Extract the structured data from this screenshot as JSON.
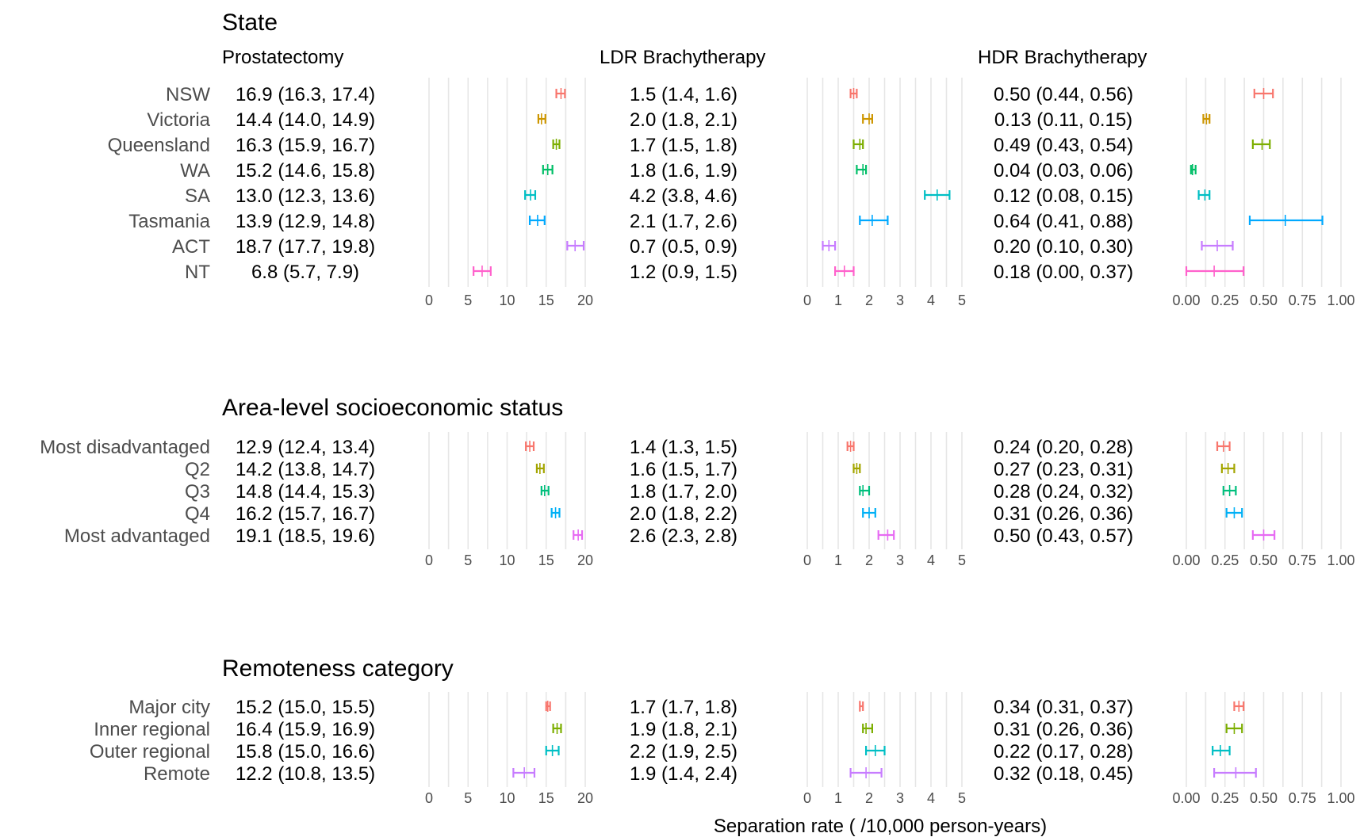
{
  "chart_data": {
    "type": "forest",
    "xlabel": "Separation rate ( /10,000 person-years)",
    "columns": [
      {
        "title": "Prostatectomy",
        "xlim": [
          0,
          20
        ],
        "ticks": [
          "0",
          "5",
          "10",
          "15",
          "20"
        ],
        "tick_values": [
          0,
          5,
          10,
          15,
          20
        ]
      },
      {
        "title": "LDR Brachytherapy",
        "xlim": [
          0,
          5
        ],
        "ticks": [
          "0",
          "1",
          "2",
          "3",
          "4",
          "5"
        ],
        "tick_values": [
          0,
          1,
          2,
          3,
          4,
          5
        ]
      },
      {
        "title": "HDR Brachytherapy",
        "xlim": [
          0,
          1
        ],
        "ticks": [
          "0.00",
          "0.25",
          "0.50",
          "0.75",
          "1.00"
        ],
        "tick_values": [
          0,
          0.25,
          0.5,
          0.75,
          1
        ]
      }
    ],
    "sections": [
      {
        "title": "State",
        "rows": [
          {
            "label": "NSW",
            "color": "#F8766D",
            "values": [
              {
                "est": 16.9,
                "lo": 16.3,
                "hi": 17.4,
                "text": "16.9 (16.3, 17.4)"
              },
              {
                "est": 1.5,
                "lo": 1.4,
                "hi": 1.6,
                "text": "1.5 (1.4, 1.6)"
              },
              {
                "est": 0.5,
                "lo": 0.44,
                "hi": 0.56,
                "text": "0.50 (0.44, 0.56)"
              }
            ]
          },
          {
            "label": "Victoria",
            "color": "#CD9600",
            "values": [
              {
                "est": 14.4,
                "lo": 14.0,
                "hi": 14.9,
                "text": "14.4 (14.0, 14.9)"
              },
              {
                "est": 2.0,
                "lo": 1.8,
                "hi": 2.1,
                "text": "2.0 (1.8, 2.1)"
              },
              {
                "est": 0.13,
                "lo": 0.11,
                "hi": 0.15,
                "text": "0.13 (0.11, 0.15)"
              }
            ]
          },
          {
            "label": "Queensland",
            "color": "#7CAE00",
            "values": [
              {
                "est": 16.3,
                "lo": 15.9,
                "hi": 16.7,
                "text": "16.3 (15.9, 16.7)"
              },
              {
                "est": 1.7,
                "lo": 1.5,
                "hi": 1.8,
                "text": "1.7 (1.5, 1.8)"
              },
              {
                "est": 0.49,
                "lo": 0.43,
                "hi": 0.54,
                "text": "0.49 (0.43, 0.54)"
              }
            ]
          },
          {
            "label": "WA",
            "color": "#00BE67",
            "values": [
              {
                "est": 15.2,
                "lo": 14.6,
                "hi": 15.8,
                "text": "15.2 (14.6, 15.8)"
              },
              {
                "est": 1.8,
                "lo": 1.6,
                "hi": 1.9,
                "text": "1.8 (1.6, 1.9)"
              },
              {
                "est": 0.04,
                "lo": 0.03,
                "hi": 0.06,
                "text": "0.04 (0.03, 0.06)"
              }
            ]
          },
          {
            "label": "SA",
            "color": "#00BFC4",
            "values": [
              {
                "est": 13.0,
                "lo": 12.3,
                "hi": 13.6,
                "text": "13.0 (12.3, 13.6)"
              },
              {
                "est": 4.2,
                "lo": 3.8,
                "hi": 4.6,
                "text": "4.2 (3.8, 4.6)"
              },
              {
                "est": 0.12,
                "lo": 0.08,
                "hi": 0.15,
                "text": "0.12 (0.08, 0.15)"
              }
            ]
          },
          {
            "label": "Tasmania",
            "color": "#00A9FF",
            "values": [
              {
                "est": 13.9,
                "lo": 12.9,
                "hi": 14.8,
                "text": "13.9 (12.9, 14.8)"
              },
              {
                "est": 2.1,
                "lo": 1.7,
                "hi": 2.6,
                "text": "2.1 (1.7, 2.6)"
              },
              {
                "est": 0.64,
                "lo": 0.41,
                "hi": 0.88,
                "text": "0.64 (0.41, 0.88)"
              }
            ]
          },
          {
            "label": "ACT",
            "color": "#C77CFF",
            "values": [
              {
                "est": 18.7,
                "lo": 17.7,
                "hi": 19.8,
                "text": "18.7 (17.7, 19.8)"
              },
              {
                "est": 0.7,
                "lo": 0.5,
                "hi": 0.9,
                "text": "0.7 (0.5, 0.9)"
              },
              {
                "est": 0.2,
                "lo": 0.1,
                "hi": 0.3,
                "text": "0.20 (0.10, 0.30)"
              }
            ]
          },
          {
            "label": "NT",
            "color": "#FF61CC",
            "values": [
              {
                "est": 6.8,
                "lo": 5.7,
                "hi": 7.9,
                "text": "6.8 (5.7, 7.9)"
              },
              {
                "est": 1.2,
                "lo": 0.9,
                "hi": 1.5,
                "text": "1.2 (0.9, 1.5)"
              },
              {
                "est": 0.18,
                "lo": 0.0,
                "hi": 0.37,
                "text": "0.18 (0.00, 0.37)"
              }
            ]
          }
        ]
      },
      {
        "title": "Area-level socioeconomic status",
        "rows": [
          {
            "label": "Most disadvantaged",
            "color": "#F8766D",
            "values": [
              {
                "est": 12.9,
                "lo": 12.4,
                "hi": 13.4,
                "text": "12.9 (12.4, 13.4)"
              },
              {
                "est": 1.4,
                "lo": 1.3,
                "hi": 1.5,
                "text": "1.4 (1.3, 1.5)"
              },
              {
                "est": 0.24,
                "lo": 0.2,
                "hi": 0.28,
                "text": "0.24 (0.20, 0.28)"
              }
            ]
          },
          {
            "label": "Q2",
            "color": "#A3A500",
            "values": [
              {
                "est": 14.2,
                "lo": 13.8,
                "hi": 14.7,
                "text": "14.2 (13.8, 14.7)"
              },
              {
                "est": 1.6,
                "lo": 1.5,
                "hi": 1.7,
                "text": "1.6 (1.5, 1.7)"
              },
              {
                "est": 0.27,
                "lo": 0.23,
                "hi": 0.31,
                "text": "0.27 (0.23, 0.31)"
              }
            ]
          },
          {
            "label": "Q3",
            "color": "#00BF7D",
            "values": [
              {
                "est": 14.8,
                "lo": 14.4,
                "hi": 15.3,
                "text": "14.8 (14.4, 15.3)"
              },
              {
                "est": 1.8,
                "lo": 1.7,
                "hi": 2.0,
                "text": "1.8 (1.7, 2.0)"
              },
              {
                "est": 0.28,
                "lo": 0.24,
                "hi": 0.32,
                "text": "0.28 (0.24, 0.32)"
              }
            ]
          },
          {
            "label": "Q4",
            "color": "#00B0F6",
            "values": [
              {
                "est": 16.2,
                "lo": 15.7,
                "hi": 16.7,
                "text": "16.2 (15.7, 16.7)"
              },
              {
                "est": 2.0,
                "lo": 1.8,
                "hi": 2.2,
                "text": "2.0 (1.8, 2.2)"
              },
              {
                "est": 0.31,
                "lo": 0.26,
                "hi": 0.36,
                "text": "0.31 (0.26, 0.36)"
              }
            ]
          },
          {
            "label": "Most advantaged",
            "color": "#E76BF3",
            "values": [
              {
                "est": 19.1,
                "lo": 18.5,
                "hi": 19.6,
                "text": "19.1 (18.5, 19.6)"
              },
              {
                "est": 2.6,
                "lo": 2.3,
                "hi": 2.8,
                "text": "2.6 (2.3, 2.8)"
              },
              {
                "est": 0.5,
                "lo": 0.43,
                "hi": 0.57,
                "text": "0.50 (0.43, 0.57)"
              }
            ]
          }
        ]
      },
      {
        "title": "Remoteness category",
        "rows": [
          {
            "label": "Major city",
            "color": "#F8766D",
            "values": [
              {
                "est": 15.2,
                "lo": 15.0,
                "hi": 15.5,
                "text": "15.2 (15.0, 15.5)"
              },
              {
                "est": 1.7,
                "lo": 1.7,
                "hi": 1.8,
                "text": "1.7 (1.7, 1.8)"
              },
              {
                "est": 0.34,
                "lo": 0.31,
                "hi": 0.37,
                "text": "0.34 (0.31, 0.37)"
              }
            ]
          },
          {
            "label": "Inner regional",
            "color": "#7CAE00",
            "values": [
              {
                "est": 16.4,
                "lo": 15.9,
                "hi": 16.9,
                "text": "16.4 (15.9, 16.9)"
              },
              {
                "est": 1.9,
                "lo": 1.8,
                "hi": 2.1,
                "text": "1.9 (1.8, 2.1)"
              },
              {
                "est": 0.31,
                "lo": 0.26,
                "hi": 0.36,
                "text": "0.31 (0.26, 0.36)"
              }
            ]
          },
          {
            "label": "Outer regional",
            "color": "#00BFC4",
            "values": [
              {
                "est": 15.8,
                "lo": 15.0,
                "hi": 16.6,
                "text": "15.8 (15.0, 16.6)"
              },
              {
                "est": 2.2,
                "lo": 1.9,
                "hi": 2.5,
                "text": "2.2 (1.9, 2.5)"
              },
              {
                "est": 0.22,
                "lo": 0.17,
                "hi": 0.28,
                "text": "0.22 (0.17, 0.28)"
              }
            ]
          },
          {
            "label": "Remote",
            "color": "#C77CFF",
            "values": [
              {
                "est": 12.2,
                "lo": 10.8,
                "hi": 13.5,
                "text": "12.2 (10.8, 13.5)"
              },
              {
                "est": 1.9,
                "lo": 1.4,
                "hi": 2.4,
                "text": "1.9 (1.4, 2.4)"
              },
              {
                "est": 0.32,
                "lo": 0.18,
                "hi": 0.45,
                "text": "0.32 (0.18, 0.45)"
              }
            ]
          }
        ]
      }
    ]
  }
}
